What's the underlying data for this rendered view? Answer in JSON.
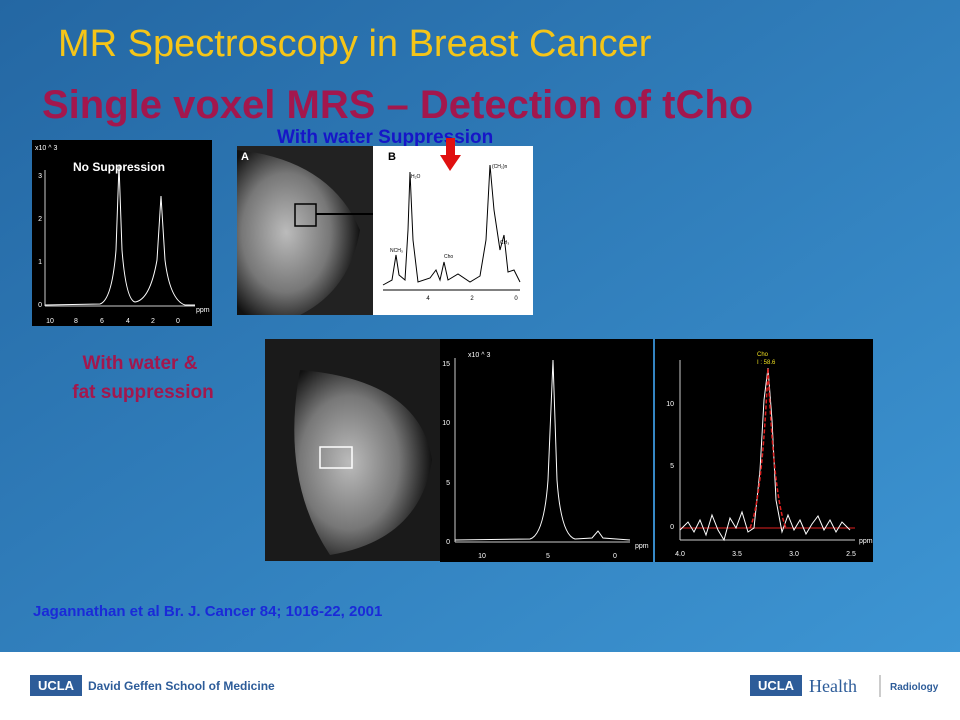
{
  "header": {
    "title": "MR Spectroscopy in Breast Cancer",
    "subtitle": "Single voxel MRS – Detection of tCho"
  },
  "panel_top_left": {
    "scale": "x10 ^ 3",
    "label": "No Suppression",
    "yticks": [
      "0",
      "1",
      "2",
      "3"
    ],
    "xticks": [
      "10",
      "8",
      "6",
      "4",
      "2",
      "0"
    ],
    "unit": "ppm"
  },
  "panel_top_right": {
    "caption": "With water Suppression",
    "image_label": "A",
    "spectrum_label": "B",
    "peaks": [
      "H₂O",
      "NCH₃",
      "Cho",
      "(CH₂)n",
      "CH₃"
    ],
    "xticks": [
      "4",
      "2",
      "0"
    ]
  },
  "fat_caption": [
    "With water &",
    "fat suppression"
  ],
  "panel_bottom_mid": {
    "scale": "x10 ^ 3",
    "yticks": [
      "15",
      "10",
      "5",
      "0"
    ],
    "xticks": [
      "10",
      "5",
      "0"
    ],
    "unit": "ppm"
  },
  "panel_bottom_right": {
    "peak": "Cho",
    "integral": "I : 58.6",
    "yticks": [
      "10",
      "5",
      "0"
    ],
    "xticks": [
      "4.0",
      "3.5",
      "3.0",
      "2.5"
    ],
    "unit": "ppm"
  },
  "citation": "Jagannathan et al Br. J. Cancer 84; 1016-22, 2001",
  "footer": {
    "left_logo": "UCLA",
    "left_text": "David Geffen School of Medicine",
    "right_logo": "UCLA",
    "right_health": "Health",
    "right_dept": "Radiology"
  }
}
